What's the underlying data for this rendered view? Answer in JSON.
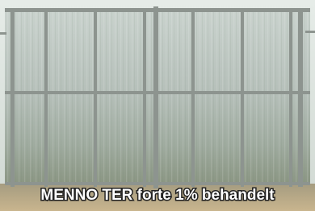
{
  "caption": "MENNO TER forte 1% behandelt"
}
